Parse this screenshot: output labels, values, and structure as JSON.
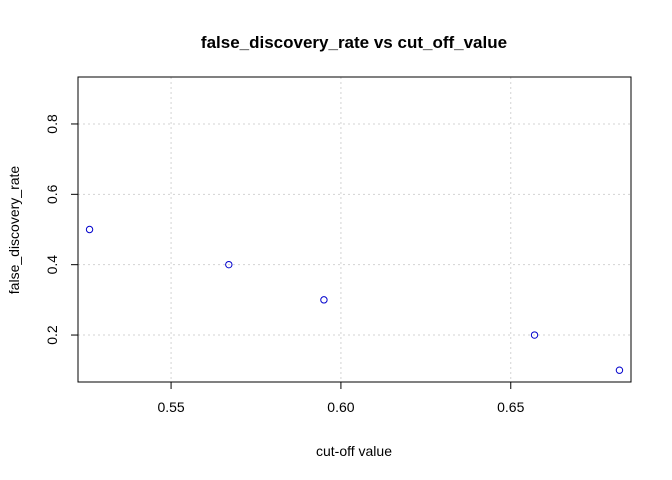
{
  "chart_data": {
    "type": "scatter",
    "title": "false_discovery_rate vs cut_off_value",
    "xlabel": "cut-off value",
    "ylabel": "false_discovery_rate",
    "x": [
      0.526,
      0.567,
      0.595,
      0.657,
      0.682
    ],
    "y": [
      0.5,
      0.4,
      0.3,
      0.2,
      0.1
    ],
    "xlim": [
      0.5226,
      0.6854
    ],
    "ylim": [
      0.0665,
      0.9335
    ],
    "xticks": [
      0.55,
      0.6,
      0.65
    ],
    "xtick_labels": [
      "0.55",
      "0.60",
      "0.65"
    ],
    "yticks": [
      0.2,
      0.4,
      0.6,
      0.8
    ],
    "ytick_labels": [
      "0.2",
      "0.4",
      "0.6",
      "0.8"
    ],
    "grid": true,
    "point_color": "#0000cc",
    "grid_color": "#d3d3d3"
  }
}
